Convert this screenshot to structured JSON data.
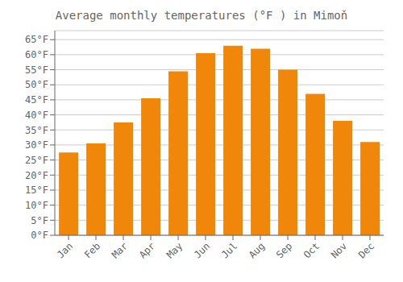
{
  "chart_data": {
    "type": "bar",
    "title": "Average monthly temperatures (°F ) in Mimoň",
    "categories": [
      "Jan",
      "Feb",
      "Mar",
      "Apr",
      "May",
      "Jun",
      "Jul",
      "Aug",
      "Sep",
      "Oct",
      "Nov",
      "Dec"
    ],
    "values": [
      27.5,
      30.5,
      37.5,
      45.5,
      54.5,
      60.5,
      63.0,
      62.0,
      55.0,
      47.0,
      38.0,
      31.0
    ],
    "color": "#F0870A",
    "ylim": [
      0,
      68
    ],
    "yticks": [
      {
        "value": 0,
        "label": "0°F"
      },
      {
        "value": 5,
        "label": "5°F"
      },
      {
        "value": 10,
        "label": "10°F"
      },
      {
        "value": 15,
        "label": "15°F"
      },
      {
        "value": 20,
        "label": "20°F"
      },
      {
        "value": 25,
        "label": "25°F"
      },
      {
        "value": 30,
        "label": "30°F"
      },
      {
        "value": 35,
        "label": "35°F"
      },
      {
        "value": 40,
        "label": "40°F"
      },
      {
        "value": 45,
        "label": "45°F"
      },
      {
        "value": 50,
        "label": "50°F"
      },
      {
        "value": 55,
        "label": "55°F"
      },
      {
        "value": 60,
        "label": "60°F"
      },
      {
        "value": 65,
        "label": "65°F"
      }
    ],
    "grid": true
  }
}
